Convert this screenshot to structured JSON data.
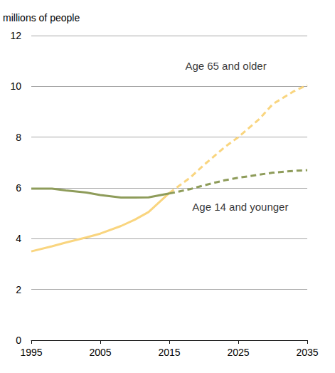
{
  "chart_data": {
    "type": "line",
    "y_label": "millions of people",
    "x": [
      1995,
      1998,
      2000,
      2003,
      2005,
      2008,
      2010,
      2012,
      2015,
      2018,
      2020,
      2023,
      2025,
      2028,
      2030,
      2033,
      2035
    ],
    "series": [
      {
        "name": "Age 65 and older",
        "color": "#f9d57f",
        "line_style": "solid",
        "values": [
          3.5,
          3.7,
          3.85,
          4.05,
          4.2,
          4.5,
          4.75,
          5.05,
          5.8,
          null,
          null,
          null,
          null,
          null,
          null,
          null,
          null
        ]
      },
      {
        "name": "Age 65 and older",
        "color": "#f9d57f",
        "line_style": "dashed",
        "values": [
          null,
          null,
          null,
          null,
          null,
          null,
          null,
          null,
          5.8,
          6.4,
          6.9,
          7.6,
          8.0,
          8.7,
          9.3,
          9.8,
          10.05
        ]
      },
      {
        "name": "Age 14 and younger",
        "color": "#8e9c5a",
        "line_style": "solid",
        "values": [
          5.97,
          5.97,
          5.9,
          5.82,
          5.72,
          5.62,
          5.62,
          5.63,
          5.78,
          null,
          null,
          null,
          null,
          null,
          null,
          null,
          null
        ]
      },
      {
        "name": "Age 14 and younger",
        "color": "#8e9c5a",
        "line_style": "dashed",
        "values": [
          null,
          null,
          null,
          null,
          null,
          null,
          null,
          null,
          5.78,
          5.95,
          6.1,
          6.3,
          6.4,
          6.52,
          6.6,
          6.67,
          6.7
        ]
      }
    ],
    "annotations": [
      {
        "text": "Age 65 and older",
        "x": 2023.2,
        "y": 10.8
      },
      {
        "text": "Age 14 and younger",
        "x": 2025.3,
        "y": 5.25
      }
    ],
    "xlim": [
      1995,
      2035
    ],
    "xticks": [
      1995,
      2005,
      2015,
      2025,
      2035
    ],
    "ylim": [
      0,
      12
    ],
    "yticks": [
      0,
      2,
      4,
      6,
      8,
      10,
      12
    ],
    "grid": true
  }
}
